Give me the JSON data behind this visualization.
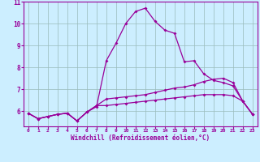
{
  "xlabel": "Windchill (Refroidissement éolien,°C)",
  "background_color": "#cceeff",
  "line_color": "#990099",
  "grid_color": "#99bbbb",
  "x_values": [
    0,
    1,
    2,
    3,
    4,
    5,
    6,
    7,
    8,
    9,
    10,
    11,
    12,
    13,
    14,
    15,
    16,
    17,
    18,
    19,
    20,
    21,
    22,
    23
  ],
  "line1_y": [
    5.9,
    5.65,
    5.75,
    5.85,
    5.9,
    5.55,
    5.95,
    6.2,
    8.3,
    9.1,
    10.0,
    10.55,
    10.7,
    10.1,
    9.7,
    9.55,
    8.25,
    8.3,
    7.7,
    7.4,
    7.3,
    7.15,
    6.45,
    5.85
  ],
  "line2_y": [
    5.9,
    5.65,
    5.75,
    5.85,
    5.9,
    5.55,
    5.95,
    6.25,
    6.55,
    6.6,
    6.65,
    6.7,
    6.75,
    6.85,
    6.95,
    7.05,
    7.1,
    7.2,
    7.35,
    7.45,
    7.5,
    7.3,
    6.45,
    5.85
  ],
  "line3_y": [
    5.9,
    5.65,
    5.75,
    5.85,
    5.9,
    5.55,
    5.95,
    6.25,
    6.25,
    6.3,
    6.35,
    6.4,
    6.45,
    6.5,
    6.55,
    6.6,
    6.65,
    6.7,
    6.75,
    6.75,
    6.75,
    6.7,
    6.45,
    5.85
  ],
  "ylim": [
    5.3,
    11.0
  ],
  "xlim": [
    -0.5,
    23.5
  ],
  "yticks": [
    6,
    7,
    8,
    9,
    10,
    11
  ],
  "xticks": [
    0,
    1,
    2,
    3,
    4,
    5,
    6,
    7,
    8,
    9,
    10,
    11,
    12,
    13,
    14,
    15,
    16,
    17,
    18,
    19,
    20,
    21,
    22,
    23
  ]
}
